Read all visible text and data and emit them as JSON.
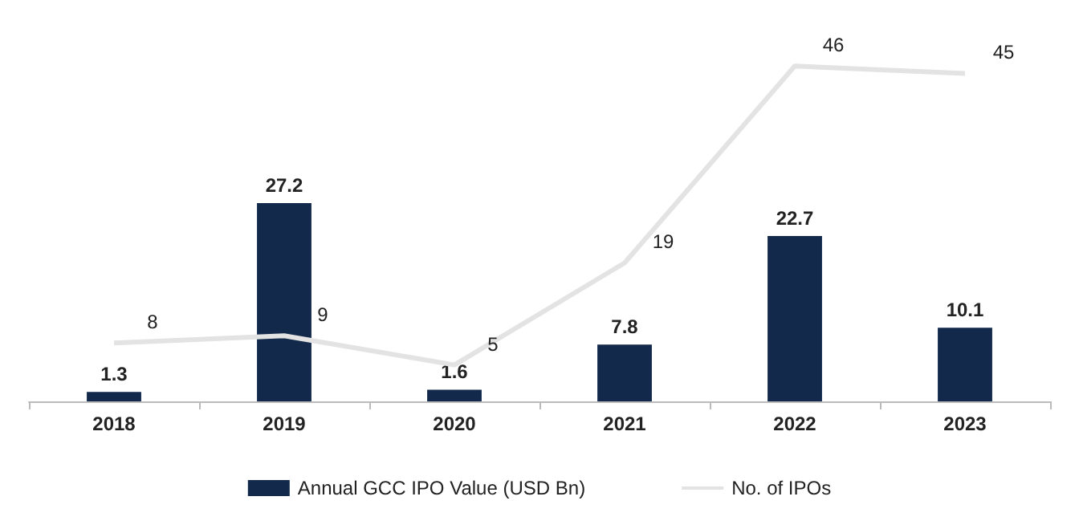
{
  "chart_data": {
    "type": "bar",
    "categories": [
      "2018",
      "2019",
      "2020",
      "2021",
      "2022",
      "2023"
    ],
    "series": [
      {
        "name": "Annual GCC IPO Value (USD Bn)",
        "color": "#13294b",
        "values": [
          1.3,
          27.2,
          1.6,
          7.8,
          22.7,
          10.1
        ]
      },
      {
        "name": "No. of IPOs",
        "type": "line",
        "color": "#e3e3e3",
        "values": [
          8,
          9,
          5,
          19,
          46,
          45
        ]
      }
    ],
    "data_labels": true,
    "legend": "bottom",
    "tick_labels": "x",
    "marker": "none"
  }
}
